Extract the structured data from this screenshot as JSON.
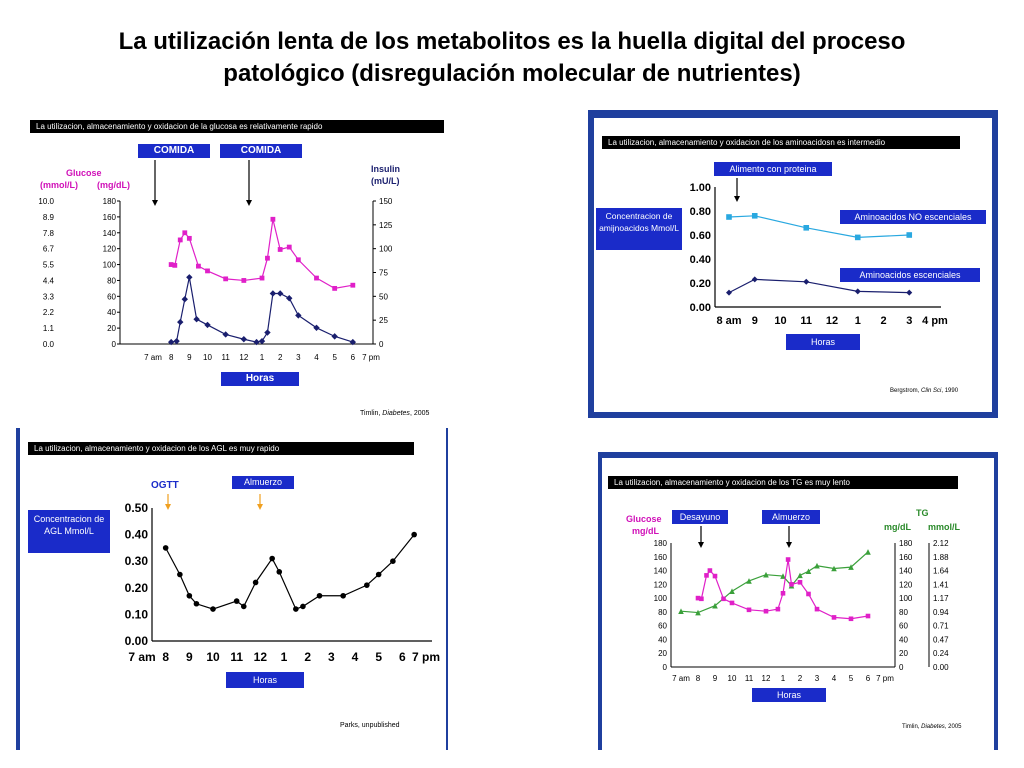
{
  "slide": {
    "title_line1": "La utilización lenta de los metabolitos es la huella digital del proceso",
    "title_line2": "patológico  (disregulación molecular de nutrientes)"
  },
  "chart_data": [
    {
      "id": "glucose-insulin",
      "type": "line",
      "title": "La utilizacion, almacenamiento y oxidacion de la glucosa es relativamente rapido",
      "markers": [
        "COMIDA",
        "COMIDA"
      ],
      "y_left_label_1": "Glucose",
      "y_left_label_2a": "(mmol/L)",
      "y_left_label_2b": "(mg/dL)",
      "y_right_label_1": "Insulin",
      "y_right_label_2": "(mU/L)",
      "mmol_ticks": [
        "10.0",
        "8.9",
        "7.8",
        "6.7",
        "5.5",
        "4.4",
        "3.3",
        "2.2",
        "1.1",
        "0.0"
      ],
      "mgdl_ticks": [
        "180",
        "160",
        "140",
        "120",
        "100",
        "80",
        "60",
        "40",
        "20",
        "0"
      ],
      "insulin_ticks": [
        "150",
        "125",
        "100",
        "75",
        "50",
        "25",
        "0"
      ],
      "x_ticks": [
        "7 am",
        "8",
        "9",
        "10",
        "11",
        "12",
        "1",
        "2",
        "3",
        "4",
        "5",
        "6",
        "7 pm"
      ],
      "xlabel": "Horas",
      "ylim": [
        0,
        180
      ],
      "y2lim": [
        0,
        150
      ],
      "xlim": [
        7,
        19
      ],
      "citation_author": "Timlin, ",
      "citation_journal": "Diabetes",
      "citation_year": ", 2005",
      "series": [
        {
          "color": "#e020c8",
          "x": [
            8.0,
            8.2,
            8.5,
            8.75,
            9.0,
            9.5,
            10.0,
            11.0,
            12.0,
            13.0,
            13.3,
            13.6,
            14.0,
            14.5,
            15.0,
            16.0,
            17.0,
            18.0
          ],
          "y": [
            100,
            99,
            131,
            140,
            133,
            98,
            92,
            82,
            80,
            83,
            108,
            157,
            119,
            122,
            106,
            83,
            70,
            74
          ]
        },
        {
          "color": "#1a1f6e",
          "axis": "right",
          "x": [
            8.0,
            8.3,
            8.5,
            8.75,
            9.0,
            9.4,
            10.0,
            11.0,
            12.0,
            12.7,
            13.0,
            13.3,
            13.6,
            14.0,
            14.5,
            15.0,
            16.0,
            17.0,
            18.0
          ],
          "y": [
            2,
            3,
            23,
            47,
            70,
            26,
            20,
            10,
            5,
            2,
            3,
            12,
            53,
            53,
            48,
            30,
            17,
            8,
            2
          ]
        }
      ]
    },
    {
      "id": "aminoacids",
      "type": "line",
      "title": "La utilizacion, almacenamiento y oxidacion de los aminoacidosn es intermedio",
      "marker": "Alimento con proteina",
      "ylabel": "Concentracion de amijnoacidos Mmol/L",
      "series_label_1": "Aminoacidos NO escenciales",
      "series_label_2": "Aminoacidos  escenciales",
      "y_ticks": [
        "1.00",
        "0.80",
        "0.60",
        "0.40",
        "0.20",
        "0.00"
      ],
      "x_ticks": [
        "8 am",
        "9",
        "10",
        "11",
        "12",
        "1",
        "2",
        "3",
        "4 pm"
      ],
      "xlabel": "Horas",
      "ylim": [
        0,
        1.0
      ],
      "xlim": [
        8,
        16
      ],
      "citation_author": "Bergstrom, ",
      "citation_journal": "Clin Sci",
      "citation_year": ", 1990",
      "series": [
        {
          "name": "Aminoacidos NO escenciales",
          "color": "#29a8e0",
          "x": [
            8,
            9,
            11,
            13,
            15
          ],
          "y": [
            0.75,
            0.76,
            0.66,
            0.58,
            0.6
          ]
        },
        {
          "name": "Aminoacidos  escenciales",
          "color": "#1a1f6e",
          "x": [
            8,
            9,
            11,
            13,
            15
          ],
          "y": [
            0.12,
            0.23,
            0.21,
            0.13,
            0.12
          ]
        }
      ]
    },
    {
      "id": "agl",
      "type": "line",
      "title": "La utilizacion, almacenamiento y oxidacion de los AGL es muy rapido",
      "marker_1": "OGTT",
      "marker_2": "Almuerzo",
      "ylabel": "Concentracion de AGL Mmol/L",
      "y_ticks": [
        "0.50",
        "0.40",
        "0.30",
        "0.20",
        "0.10",
        "0.00"
      ],
      "x_ticks": [
        "7 am",
        "8",
        "9",
        "10",
        "11",
        "12",
        "1",
        "2",
        "3",
        "4",
        "5",
        "6",
        "7 pm"
      ],
      "xlabel": "Horas",
      "ylim": [
        0,
        0.5
      ],
      "xlim": [
        7,
        19
      ],
      "citation": "Parks, unpublished",
      "series": [
        {
          "color": "#000000",
          "x": [
            8.0,
            8.6,
            9.0,
            9.3,
            10.0,
            11.0,
            11.3,
            11.8,
            12.5,
            12.8,
            13.5,
            13.8,
            14.5,
            15.5,
            16.5,
            17.0,
            17.6,
            18.5
          ],
          "y": [
            0.35,
            0.25,
            0.17,
            0.14,
            0.12,
            0.15,
            0.13,
            0.22,
            0.31,
            0.26,
            0.12,
            0.13,
            0.17,
            0.17,
            0.21,
            0.25,
            0.3,
            0.4
          ]
        }
      ]
    },
    {
      "id": "glucose-tg",
      "type": "line",
      "title": "La utilizacion, almacenamiento y oxidacion de los TG es muy lento",
      "marker_1": "Desayuno",
      "marker_2": "Almuerzo",
      "y_left_label_1": "Glucose",
      "y_left_label_2": "mg/dL",
      "y_right_label_1": "TG",
      "y_right_label_2a": "mg/dL",
      "y_right_label_2b": "mmol/L",
      "left_ticks": [
        "180",
        "160",
        "140",
        "120",
        "100",
        "80",
        "60",
        "40",
        "20",
        "0"
      ],
      "right_mgdl_ticks": [
        "180",
        "160",
        "140",
        "120",
        "100",
        "80",
        "60",
        "40",
        "20",
        "0"
      ],
      "right_mmol_ticks": [
        "2.12",
        "1.88",
        "1.64",
        "1.41",
        "1.17",
        "0.94",
        "0.71",
        "0.47",
        "0.24",
        "0.00"
      ],
      "x_ticks": [
        "7 am",
        "8",
        "9",
        "10",
        "11",
        "12",
        "1",
        "2",
        "3",
        "4",
        "5",
        "6",
        "7 pm"
      ],
      "xlabel": "Horas",
      "ylim": [
        0,
        180
      ],
      "xlim": [
        7,
        19
      ],
      "citation_author": "Timlin, ",
      "citation_journal": "Diabetes",
      "citation_year": ", 2005",
      "series": [
        {
          "color": "#e020c8",
          "x": [
            8.0,
            8.2,
            8.5,
            8.7,
            9.0,
            9.5,
            10.0,
            11.0,
            12.0,
            12.7,
            13.0,
            13.3,
            13.5,
            14.0,
            14.5,
            15.0,
            16.0,
            17.0,
            18.0
          ],
          "y": [
            100,
            99,
            133,
            140,
            132,
            99,
            93,
            83,
            81,
            84,
            107,
            156,
            120,
            123,
            106,
            84,
            72,
            70,
            74
          ]
        },
        {
          "color": "#3aa03a",
          "x": [
            7.0,
            8.0,
            9.0,
            10.0,
            11.0,
            12.0,
            13.0,
            13.5,
            14.0,
            14.5,
            15.0,
            16.0,
            17.0,
            18.0
          ],
          "y": [
            81,
            79,
            89,
            110,
            125,
            134,
            132,
            118,
            133,
            139,
            147,
            143,
            145,
            167
          ]
        }
      ]
    }
  ]
}
